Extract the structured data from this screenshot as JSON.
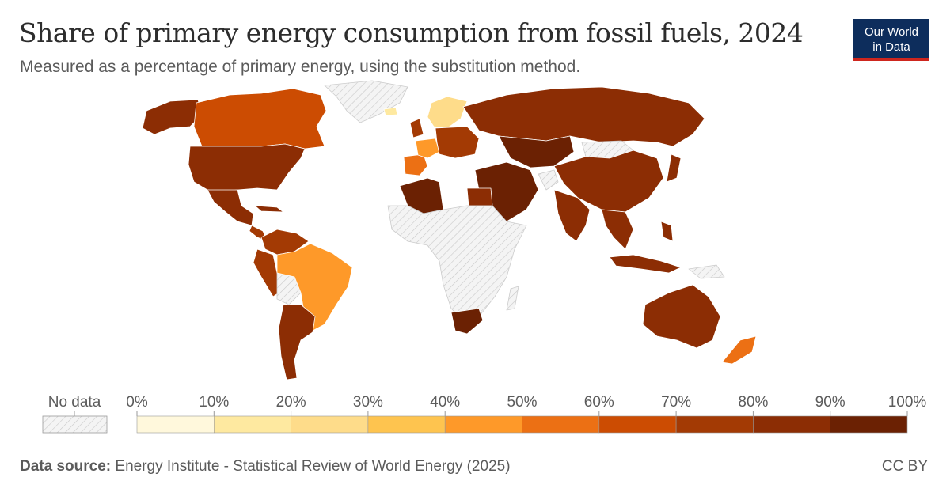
{
  "header": {
    "title": "Share of primary energy consumption from fossil fuels, 2024",
    "subtitle": "Measured as a percentage of primary energy, using the substitution method."
  },
  "logo": {
    "line1": "Our World",
    "line2": "in Data"
  },
  "legend": {
    "no_data_label": "No data",
    "ticks": [
      "0%",
      "10%",
      "20%",
      "30%",
      "40%",
      "50%",
      "60%",
      "70%",
      "80%",
      "90%",
      "100%"
    ],
    "colors": [
      "#fff8dc",
      "#fee9a0",
      "#fedc8a",
      "#fec44f",
      "#fe9929",
      "#ec7014",
      "#cc4c02",
      "#a33a04",
      "#8c2d04",
      "#6b2103"
    ],
    "no_data_color": "#e8e8e8"
  },
  "footer": {
    "source_label": "Data source:",
    "source_text": "Energy Institute - Statistical Review of World Energy (2025)",
    "license": "CC BY"
  },
  "map": {
    "land_nodata_color": "#f0f0f0",
    "border_color": "#ffffff"
  }
}
